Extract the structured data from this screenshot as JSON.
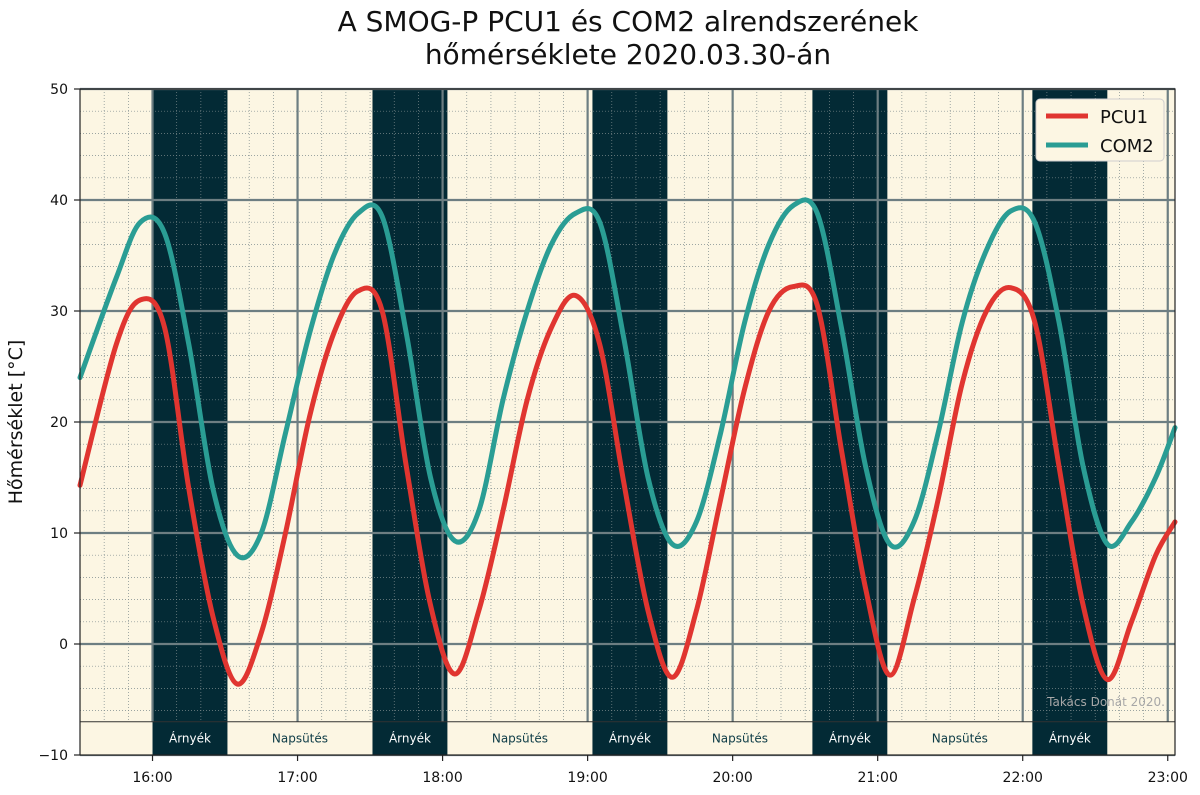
{
  "chart_data": {
    "type": "line",
    "title": "A SMOG-P PCU1 és COM2 alrendszerének",
    "subtitle": "hőmérséklete 2020.03.30-án",
    "xlabel": "",
    "ylabel": "Hőmérséklet [°C]",
    "xlim": [
      "15:30",
      "23:03"
    ],
    "ylim": [
      -10,
      50
    ],
    "yticks": [
      "−10",
      "0",
      "10",
      "20",
      "30",
      "40",
      "50"
    ],
    "y_tick_values": [
      -10,
      0,
      10,
      20,
      30,
      40,
      50
    ],
    "xticks": [
      "16:00",
      "17:00",
      "18:00",
      "19:00",
      "20:00",
      "21:00",
      "22:00",
      "23:00"
    ],
    "grid": true,
    "legend": "top-right",
    "watermark": "Takács Donát 2020.",
    "bands": [
      {
        "label": "Árnyék",
        "start": "16:00",
        "end": "16:31"
      },
      {
        "label": "Napsütés",
        "start": "16:31",
        "end": "17:31"
      },
      {
        "label": "Árnyék",
        "start": "17:31",
        "end": "18:02"
      },
      {
        "label": "Napsütés",
        "start": "18:02",
        "end": "19:02"
      },
      {
        "label": "Árnyék",
        "start": "19:02",
        "end": "19:33"
      },
      {
        "label": "Napsütés",
        "start": "19:33",
        "end": "20:33"
      },
      {
        "label": "Árnyék",
        "start": "20:33",
        "end": "21:04"
      },
      {
        "label": "Napsütés",
        "start": "21:04",
        "end": "22:04"
      },
      {
        "label": "Árnyék",
        "start": "22:04",
        "end": "22:35"
      }
    ],
    "series": [
      {
        "name": "PCU1",
        "color": "#e03530",
        "x": [
          "15:30",
          "15:45",
          "15:55",
          "16:05",
          "16:15",
          "16:25",
          "16:35",
          "16:45",
          "16:55",
          "17:05",
          "17:15",
          "17:25",
          "17:35",
          "17:45",
          "17:55",
          "18:05",
          "18:15",
          "18:25",
          "18:35",
          "18:45",
          "18:55",
          "19:05",
          "19:15",
          "19:25",
          "19:35",
          "19:45",
          "19:55",
          "20:05",
          "20:15",
          "20:25",
          "20:35",
          "20:45",
          "20:55",
          "21:05",
          "21:15",
          "21:25",
          "21:35",
          "21:45",
          "21:55",
          "22:05",
          "22:15",
          "22:25",
          "22:35",
          "22:45",
          "22:55",
          "23:03"
        ],
        "y": [
          14.3,
          27,
          31,
          28.5,
          14,
          2.5,
          -3.6,
          1,
          10,
          20.5,
          28,
          31.8,
          30,
          16,
          3.5,
          -2.7,
          3,
          12,
          22,
          28.5,
          31.4,
          27,
          14.5,
          3,
          -3,
          3,
          13,
          23,
          30,
          32.2,
          30.5,
          17.5,
          5,
          -2.8,
          4,
          13,
          23.5,
          30,
          32.1,
          29,
          16,
          3.5,
          -3.2,
          2,
          8,
          11
        ]
      },
      {
        "name": "COM2",
        "color": "#2a9d94",
        "x": [
          "15:30",
          "15:45",
          "15:55",
          "16:05",
          "16:15",
          "16:25",
          "16:35",
          "16:45",
          "16:55",
          "17:05",
          "17:15",
          "17:25",
          "17:35",
          "17:45",
          "17:55",
          "18:05",
          "18:15",
          "18:25",
          "18:35",
          "18:45",
          "18:55",
          "19:05",
          "19:15",
          "19:25",
          "19:35",
          "19:45",
          "19:55",
          "20:05",
          "20:15",
          "20:25",
          "20:35",
          "20:45",
          "20:55",
          "21:05",
          "21:15",
          "21:25",
          "21:35",
          "21:45",
          "21:55",
          "22:05",
          "22:15",
          "22:25",
          "22:35",
          "22:45",
          "22:55",
          "23:03"
        ],
        "y": [
          24,
          33,
          38,
          37,
          27,
          14,
          8,
          10,
          19,
          28,
          35,
          38.8,
          38.5,
          28,
          15,
          9.3,
          12,
          22,
          30,
          36,
          38.8,
          38,
          27.5,
          15,
          9,
          11,
          19,
          29,
          36,
          39.5,
          38.8,
          28.5,
          16,
          9,
          11,
          19,
          29,
          35.5,
          39,
          38,
          29,
          16,
          9,
          11,
          15,
          19.5
        ]
      }
    ]
  }
}
